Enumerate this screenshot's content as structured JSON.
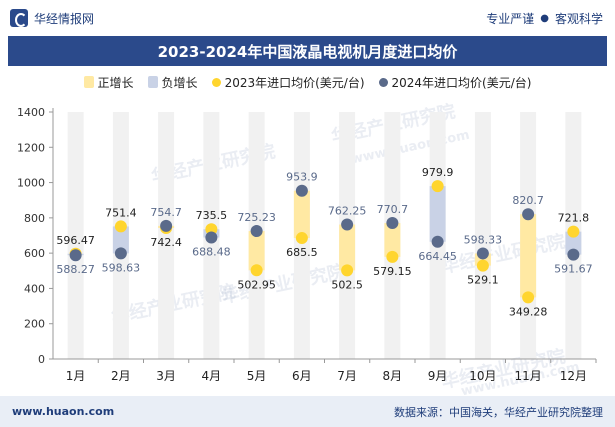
{
  "header": {
    "brand": "华经情报网",
    "slogan_left": "专业严谨",
    "slogan_sep": "●",
    "slogan_right": "客观科学"
  },
  "watermark": {
    "text": "华经产业研究院",
    "url": "www.huaon.com"
  },
  "footer": {
    "url": "www.huaon.com",
    "source": "数据来源：中国海关，华经产业研究院整理"
  },
  "colors": {
    "title_bg": "#2b4a8b",
    "pos_bar": "#ffe9a3",
    "neg_bar": "#c9d2e6",
    "dot_2023": "#ffd52e",
    "dot_2024": "#5a6a8a",
    "bg_bar": "#f1f1f1"
  },
  "chart_data": {
    "type": "dumbbell",
    "title": "2023-2024年中国液晶电视机月度进口均价",
    "categories": [
      "1月",
      "2月",
      "3月",
      "4月",
      "5月",
      "6月",
      "7月",
      "8月",
      "9月",
      "10月",
      "11月",
      "12月"
    ],
    "series": [
      {
        "name": "2023年进口均价(美元/台)",
        "values": [
          596.47,
          751.4,
          742.4,
          735.5,
          502.95,
          685.5,
          502.5,
          579.15,
          979.9,
          529.1,
          349.28,
          721.8
        ]
      },
      {
        "name": "2024年进口均价(美元/台)",
        "values": [
          588.27,
          598.63,
          754.7,
          688.48,
          725.23,
          953.9,
          762.25,
          770.7,
          664.45,
          598.33,
          820.7,
          591.67
        ]
      }
    ],
    "legend": [
      "正增长",
      "负增长",
      "2023年进口均价(美元/台)",
      "2024年进口均价(美元/台)"
    ],
    "labels_2023": [
      "596.47",
      "751.4",
      "742.4",
      "735.5",
      "502.95",
      "685.5",
      "502.5",
      "579.15",
      "979.9",
      "529.1",
      "349.28",
      "721.8"
    ],
    "labels_2024": [
      "588.27",
      "598.63",
      "754.7",
      "688.48",
      "725.23",
      "953.9",
      "762.25",
      "770.7",
      "664.45",
      "598.33",
      "820.7",
      "591.67"
    ],
    "y_ticks": [
      "0",
      "200",
      "400",
      "600",
      "800",
      "1000",
      "1200",
      "1400"
    ],
    "ylim": [
      0,
      1400
    ],
    "xlabel": "",
    "ylabel": ""
  }
}
